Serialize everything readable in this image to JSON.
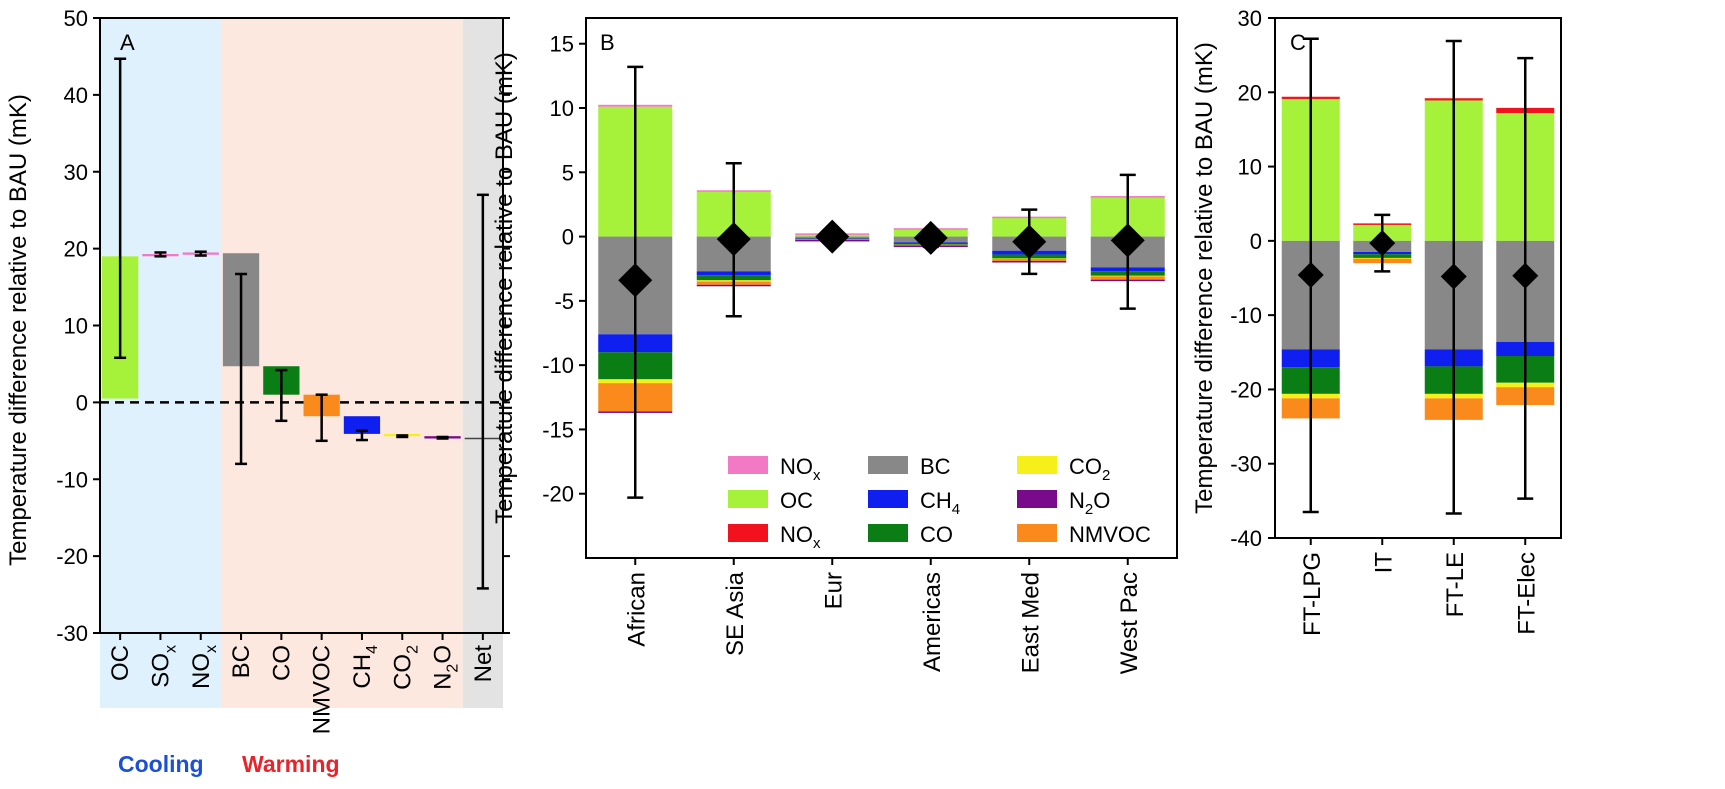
{
  "figure": {
    "ylabel": "Temperature difference relative to BAU (mK)"
  },
  "panelA": {
    "letter": "A",
    "ylim": [
      -30,
      50
    ],
    "ticks": [
      50,
      40,
      30,
      20,
      10,
      0,
      -10,
      -20,
      -30
    ],
    "tick_labels": [
      "50",
      "40",
      "30",
      "20",
      "10",
      "0",
      "-10",
      "-20",
      "-30"
    ],
    "bg": {
      "cooling": "#dff1fc",
      "warming": "#fde8e0",
      "net": "#e3e3e3"
    },
    "cooling_label": "Cooling",
    "warming_label": "Warming",
    "cooling_color": "#1a4fd6",
    "warming_color": "#e8232a",
    "categories": [
      {
        "key": "OC",
        "main": "OC",
        "sub": ""
      },
      {
        "key": "SOx",
        "main": "SO",
        "sub": "x"
      },
      {
        "key": "NOx",
        "main": "NO",
        "sub": "x"
      },
      {
        "key": "BC",
        "main": "BC",
        "sub": ""
      },
      {
        "key": "CO",
        "main": "CO",
        "sub": ""
      },
      {
        "key": "NMVOC",
        "main": "NMVOC",
        "sub": ""
      },
      {
        "key": "CH4",
        "main": "CH",
        "sub": "4"
      },
      {
        "key": "CO2",
        "main": "CO",
        "sub": "2"
      },
      {
        "key": "N2O",
        "main": "N",
        "sub": "2",
        "tail": "O"
      },
      {
        "key": "Net",
        "main": "Net",
        "sub": ""
      }
    ]
  },
  "panelB": {
    "letter": "B",
    "ylim": [
      -25,
      17
    ],
    "ticks": [
      15,
      10,
      5,
      0,
      -5,
      -10,
      -15,
      -20
    ],
    "tick_labels": [
      "15",
      "10",
      "5",
      "0",
      "-5",
      "-10",
      "-15",
      "-20"
    ],
    "categories": [
      "African",
      "SE Asia",
      "Eur",
      "Americas",
      "East Med",
      "West Pac"
    ]
  },
  "panelC": {
    "letter": "C",
    "ylim": [
      -40,
      30
    ],
    "ticks": [
      30,
      20,
      10,
      0,
      -10,
      -20,
      -30,
      -40
    ],
    "tick_labels": [
      "30",
      "20",
      "10",
      "0",
      "-10",
      "-20",
      "-30",
      "-40"
    ],
    "categories": [
      "FT-LPG",
      "IT",
      "FT-LE",
      "FT-Elec"
    ]
  },
  "legend": [
    {
      "key": "NOx_pos",
      "label": "NO",
      "sub": "x",
      "color": "#f279c4"
    },
    {
      "key": "OC",
      "label": "OC",
      "sub": "",
      "color": "#a6f23a"
    },
    {
      "key": "NOx_neg",
      "label": "NO",
      "sub": "x",
      "color": "#f2121d"
    },
    {
      "key": "BC",
      "label": "BC",
      "sub": "",
      "color": "#888888"
    },
    {
      "key": "CH4",
      "label": "CH",
      "sub": "4",
      "color": "#0f1ff0"
    },
    {
      "key": "CO",
      "label": "CO",
      "sub": "",
      "color": "#0a7d14"
    },
    {
      "key": "CO2",
      "label": "CO",
      "sub": "2",
      "color": "#f5f01a"
    },
    {
      "key": "N2O",
      "label": "N",
      "sub": "2",
      "tail": "O",
      "color": "#7a0a8c"
    },
    {
      "key": "NMVOC",
      "label": "NMVOC",
      "sub": "",
      "color": "#fb8a1c"
    }
  ],
  "chart_data": [
    {
      "panel": "A",
      "type": "bar",
      "title": "",
      "ylabel": "Temperature difference relative to BAU (mK)",
      "ylim": [
        -30,
        50
      ],
      "categories": [
        "OC",
        "SOx",
        "NOx",
        "BC",
        "CO",
        "NMVOC",
        "CH4",
        "CO2",
        "N2O",
        "Net"
      ],
      "bars": [
        {
          "category": "OC",
          "from": 0.5,
          "to": 19.0,
          "color": "#a6f23a"
        },
        {
          "category": "SOx",
          "from": 19.0,
          "to": 19.3,
          "color": "#f279c4"
        },
        {
          "category": "NOx",
          "from": 19.2,
          "to": 19.5,
          "color": "#f279c4"
        },
        {
          "category": "BC",
          "from": 19.4,
          "to": 4.7,
          "color": "#888888"
        },
        {
          "category": "CO",
          "from": 4.7,
          "to": 1.0,
          "color": "#0a7d14"
        },
        {
          "category": "NMVOC",
          "from": 1.0,
          "to": -1.8,
          "color": "#fb8a1c"
        },
        {
          "category": "CH4",
          "from": -1.8,
          "to": -4.1,
          "color": "#0f1ff0"
        },
        {
          "category": "CO2",
          "from": -4.1,
          "to": -4.4,
          "color": "#f5f01a"
        },
        {
          "category": "N2O",
          "from": -4.4,
          "to": -4.7,
          "color": "#7a0a8c"
        }
      ],
      "error_bars": [
        {
          "category": "OC",
          "low": 5.8,
          "high": 44.7
        },
        {
          "category": "SOx",
          "low": 19.0,
          "high": 19.5
        },
        {
          "category": "NOx",
          "low": 19.1,
          "high": 19.6
        },
        {
          "category": "BC",
          "low": -8.0,
          "high": 16.7
        },
        {
          "category": "CO",
          "low": -2.4,
          "high": 4.2
        },
        {
          "category": "NMVOC",
          "low": -5.0,
          "high": 1.0
        },
        {
          "category": "CH4",
          "low": -4.9,
          "high": -3.7
        },
        {
          "category": "CO2",
          "low": -4.5,
          "high": -4.3
        },
        {
          "category": "N2O",
          "low": -4.7,
          "high": -4.5
        },
        {
          "category": "Net",
          "low": -24.2,
          "high": 27.0
        }
      ],
      "net_value": -4.7,
      "zero_line": "dashed"
    },
    {
      "panel": "B",
      "type": "bar",
      "stacked": true,
      "ylabel": "Temperature difference relative to BAU (mK)",
      "ylim": [
        -25,
        17
      ],
      "categories": [
        "African",
        "SE Asia",
        "Eur",
        "Americas",
        "East Med",
        "West Pac"
      ],
      "positive_order": [
        "OC",
        "NOx_pos"
      ],
      "negative_order": [
        "BC",
        "CH4",
        "CO",
        "CO2",
        "NMVOC",
        "N2O"
      ],
      "series": [
        {
          "name": "OC",
          "values": [
            10.1,
            3.5,
            0.2,
            0.6,
            1.5,
            3.1
          ]
        },
        {
          "name": "NOx_pos",
          "values": [
            0.15,
            0.1,
            0.05,
            0.05,
            0.05,
            0.05
          ]
        },
        {
          "name": "BC",
          "values": [
            -7.6,
            -2.7,
            -0.15,
            -0.45,
            -1.1,
            -2.4
          ]
        },
        {
          "name": "CH4",
          "values": [
            -1.4,
            -0.3,
            -0.03,
            -0.08,
            -0.3,
            -0.3
          ]
        },
        {
          "name": "CO",
          "values": [
            -2.1,
            -0.4,
            -0.03,
            -0.1,
            -0.3,
            -0.35
          ]
        },
        {
          "name": "CO2",
          "values": [
            -0.3,
            -0.1,
            -0.02,
            -0.02,
            -0.05,
            -0.05
          ]
        },
        {
          "name": "NMVOC",
          "values": [
            -2.2,
            -0.25,
            -0.03,
            -0.05,
            -0.15,
            -0.25
          ]
        },
        {
          "name": "N2O",
          "values": [
            -0.05,
            -0.02,
            -0.01,
            -0.01,
            -0.01,
            -0.01
          ]
        }
      ],
      "net": [
        -3.4,
        -0.2,
        0.0,
        -0.1,
        -0.4,
        -0.3
      ],
      "error_low": [
        -20.3,
        -6.2,
        -0.2,
        -0.8,
        -2.9,
        -5.6
      ],
      "error_high": [
        13.2,
        5.7,
        0.2,
        0.5,
        2.1,
        4.8
      ]
    },
    {
      "panel": "C",
      "type": "bar",
      "stacked": true,
      "ylabel": "Temperature difference relative to BAU (mK)",
      "ylim": [
        -40,
        30
      ],
      "categories": [
        "FT-LPG",
        "IT",
        "FT-LE",
        "FT-Elec"
      ],
      "positive_order": [
        "OC",
        "NOx_neg"
      ],
      "negative_order": [
        "BC",
        "CH4",
        "CO",
        "CO2",
        "NMVOC"
      ],
      "series": [
        {
          "name": "OC",
          "values": [
            19.1,
            2.3,
            18.9,
            17.2
          ]
        },
        {
          "name": "NOx_neg",
          "values": [
            0.3,
            0.05,
            0.3,
            0.7
          ]
        },
        {
          "name": "BC",
          "values": [
            -14.6,
            -1.5,
            -14.6,
            -13.6
          ]
        },
        {
          "name": "CH4",
          "values": [
            -2.4,
            -0.3,
            -2.3,
            -1.9
          ]
        },
        {
          "name": "CO",
          "values": [
            -3.6,
            -0.5,
            -3.7,
            -3.6
          ]
        },
        {
          "name": "CO2",
          "values": [
            -0.6,
            -0.1,
            -0.6,
            -0.6
          ]
        },
        {
          "name": "NMVOC",
          "values": [
            -2.7,
            -0.6,
            -2.9,
            -2.4
          ]
        }
      ],
      "net": [
        -4.6,
        -0.3,
        -4.8,
        -4.7
      ],
      "error_low": [
        -36.5,
        -4.1,
        -36.7,
        -34.7
      ],
      "error_high": [
        27.2,
        3.5,
        26.9,
        24.6
      ]
    }
  ]
}
